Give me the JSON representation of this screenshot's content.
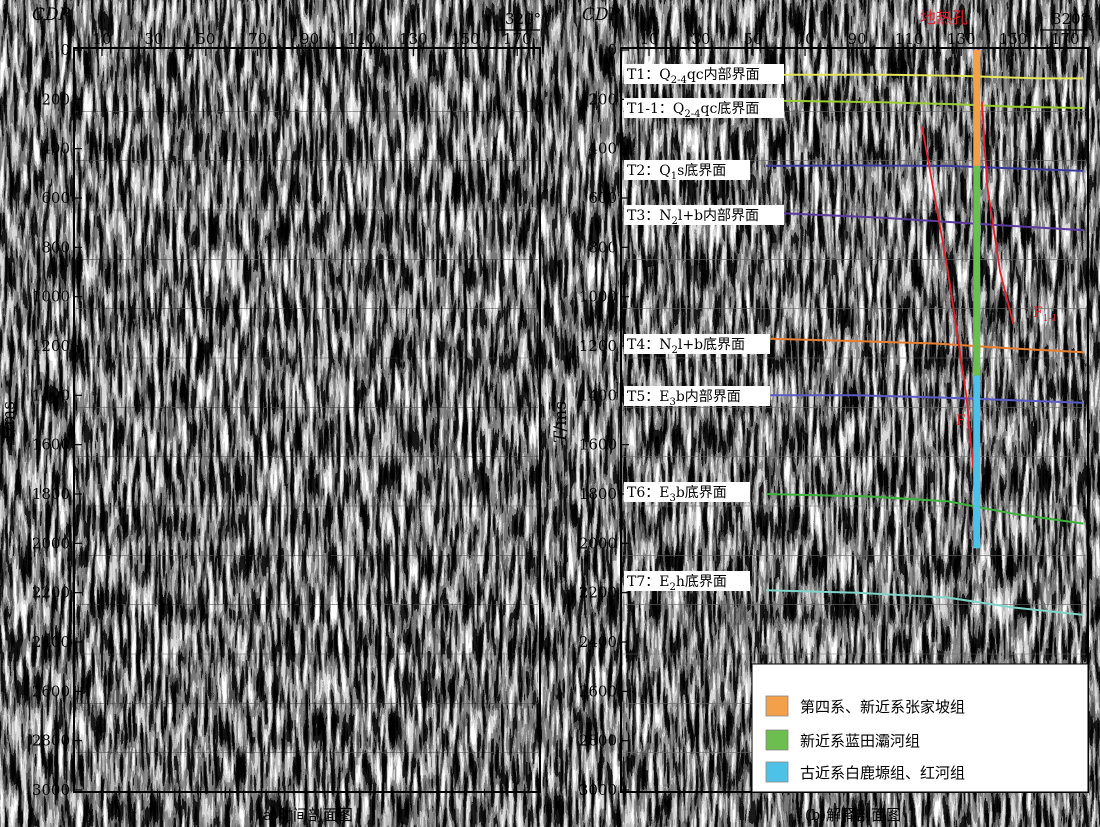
{
  "left_panel": {
    "caption": "(a)时间剖面图",
    "cdp_label": "CDP",
    "azimuth": "320°",
    "y_label_italic": "T",
    "y_label_unit": "/ms"
  },
  "right_panel": {
    "caption": "(b)解释剖面图",
    "cdp_label": "CDP",
    "azimuth": "320°",
    "y_label_italic": "T",
    "y_label_unit": "/ms",
    "well_label": "地热孔",
    "fault_labels": [
      {
        "main": "F",
        "sub": "1"
      },
      {
        "main": "F",
        "sub": "1-1"
      }
    ],
    "horizon_labels": [
      {
        "prefix": "T1：Q",
        "sub": "2-4",
        "suffix": "qc内部界面"
      },
      {
        "prefix": "T1-1：Q",
        "sub": "2-4",
        "suffix": "qc底界面"
      },
      {
        "prefix": "T2：Q",
        "sub": "1",
        "suffix": "s底界面"
      },
      {
        "prefix": "T3：N",
        "sub": "2",
        "suffix": "l+b内部界面"
      },
      {
        "prefix": "T4：N",
        "sub": "2",
        "suffix": "l+b底界面"
      },
      {
        "prefix": "T5：E",
        "sub": "3",
        "suffix": "b内部界面"
      },
      {
        "prefix": "T6：E",
        "sub": "3",
        "suffix": "b底界面"
      },
      {
        "prefix": "T7：E",
        "sub": "2",
        "suffix": "h底界面"
      }
    ],
    "legend": [
      {
        "label": "第四系、新近系张家坡组",
        "color": "#f2a04a"
      },
      {
        "label": "新近系蓝田灞河组",
        "color": "#6cbf4e"
      },
      {
        "label": "古近系白鹿塬组、红河组",
        "color": "#4ec2e6"
      }
    ]
  },
  "chart_data": [
    {
      "type": "seismic_section",
      "title": "(a)时间剖面图",
      "xlabel": "CDP",
      "ylabel": "T/ms",
      "x_ticks": [
        10,
        30,
        50,
        70,
        90,
        110,
        130,
        150,
        170
      ],
      "y_ticks": [
        0,
        200,
        400,
        600,
        800,
        1000,
        1200,
        1400,
        1600,
        1800,
        2000,
        2200,
        2400,
        2600,
        2800,
        3000
      ],
      "xlim": [
        0,
        178
      ],
      "ylim": [
        0,
        3000
      ],
      "azimuth": "320°"
    },
    {
      "type": "seismic_section",
      "title": "(b)解释剖面图",
      "xlabel": "CDP",
      "ylabel": "T/ms",
      "x_ticks": [
        10,
        30,
        50,
        70,
        90,
        110,
        130,
        150,
        170
      ],
      "y_ticks": [
        0,
        200,
        400,
        600,
        800,
        1000,
        1200,
        1400,
        1600,
        1800,
        2000,
        2200,
        2400,
        2600,
        2800,
        3000
      ],
      "xlim": [
        0,
        178
      ],
      "ylim": [
        0,
        3000
      ],
      "azimuth": "320°",
      "horizons": [
        {
          "name": "T1",
          "color": "#e6e65a",
          "points": [
            [
              57,
              100
            ],
            [
              100,
              100
            ],
            [
              130,
              105
            ],
            [
              160,
              115
            ],
            [
              177,
              115
            ]
          ]
        },
        {
          "name": "T1-1",
          "color": "#9acd32",
          "points": [
            [
              57,
              205
            ],
            [
              100,
              212
            ],
            [
              128,
              220
            ],
            [
              150,
              230
            ],
            [
              177,
              235
            ]
          ]
        },
        {
          "name": "T2",
          "color": "#3a3aa0",
          "points": [
            [
              55,
              470
            ],
            [
              90,
              468
            ],
            [
              125,
              470
            ],
            [
              150,
              480
            ],
            [
              177,
              490
            ]
          ]
        },
        {
          "name": "T3",
          "color": "#5a3aa0",
          "points": [
            [
              57,
              660
            ],
            [
              100,
              680
            ],
            [
              130,
              700
            ],
            [
              160,
              720
            ],
            [
              177,
              730
            ]
          ]
        },
        {
          "name": "T4",
          "color": "#e87f2e",
          "points": [
            [
              55,
              1170
            ],
            [
              90,
              1180
            ],
            [
              120,
              1190
            ],
            [
              150,
              1210
            ],
            [
              177,
              1225
            ]
          ]
        },
        {
          "name": "T5",
          "color": "#5a5ac8",
          "points": [
            [
              55,
              1400
            ],
            [
              90,
              1400
            ],
            [
              125,
              1410
            ],
            [
              150,
              1420
            ],
            [
              177,
              1430
            ]
          ]
        },
        {
          "name": "T6",
          "color": "#3cb43c",
          "points": [
            [
              55,
              1800
            ],
            [
              95,
              1810
            ],
            [
              125,
              1830
            ],
            [
              150,
              1880
            ],
            [
              177,
              1920
            ]
          ]
        },
        {
          "name": "T7",
          "color": "#7fd6c8",
          "points": [
            [
              55,
              2190
            ],
            [
              90,
              2200
            ],
            [
              125,
              2220
            ],
            [
              150,
              2260
            ],
            [
              177,
              2290
            ]
          ]
        }
      ],
      "faults": [
        {
          "name": "F1",
          "points": [
            [
              115,
              310
            ],
            [
              125,
              900
            ],
            [
              132,
              1400
            ],
            [
              137,
              1950
            ]
          ]
        },
        {
          "name": "F1-1",
          "points": [
            [
              138,
              210
            ],
            [
              140,
              550
            ],
            [
              145,
              900
            ],
            [
              150,
              1110
            ]
          ]
        }
      ],
      "well": {
        "cdp": 136,
        "intervals": [
          {
            "unit": "第四系、新近系张家坡组",
            "top": 0,
            "bottom": 470,
            "color": "#f2a04a"
          },
          {
            "unit": "新近系蓝田灞河组",
            "top": 470,
            "bottom": 1320,
            "color": "#6cbf4e"
          },
          {
            "unit": "古近系白鹿塬组、红河组",
            "top": 1320,
            "bottom": 2020,
            "color": "#4ec2e6"
          }
        ]
      }
    }
  ]
}
